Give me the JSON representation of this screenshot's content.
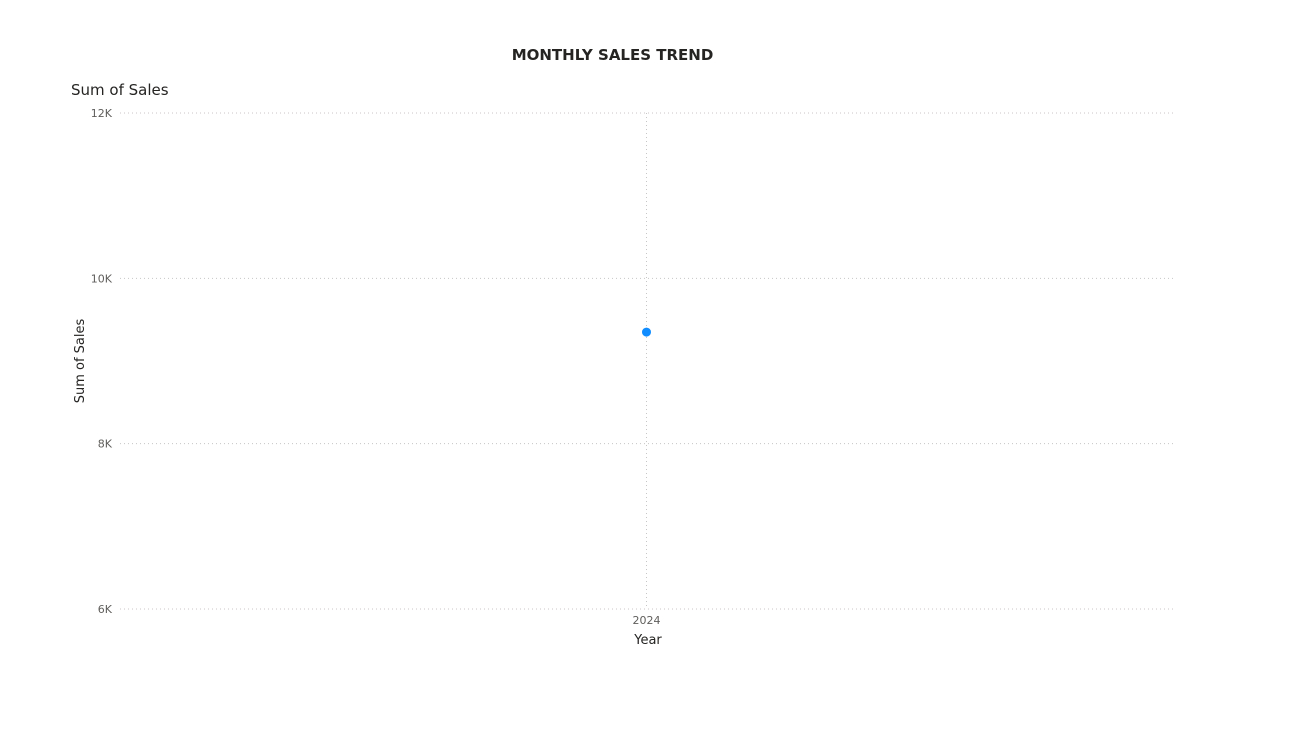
{
  "header": {
    "visual_label": "Sum of Sales"
  },
  "colors": {
    "series": "#118DFF",
    "grid": "#c8c6c4",
    "tick_text": "#605e5c"
  },
  "chart_data": {
    "type": "scatter",
    "title": "MONTHLY SALES TREND",
    "xlabel": "Year",
    "ylabel": "Sum of Sales",
    "x": [
      2024
    ],
    "categories": [
      "2024"
    ],
    "values": [
      9350
    ],
    "ylim": [
      6000,
      12000
    ],
    "yticks": [
      {
        "value": 6000,
        "label": "6K"
      },
      {
        "value": 8000,
        "label": "8K"
      },
      {
        "value": 10000,
        "label": "10K"
      },
      {
        "value": 12000,
        "label": "12K"
      }
    ],
    "grid": true,
    "legend": "none"
  }
}
